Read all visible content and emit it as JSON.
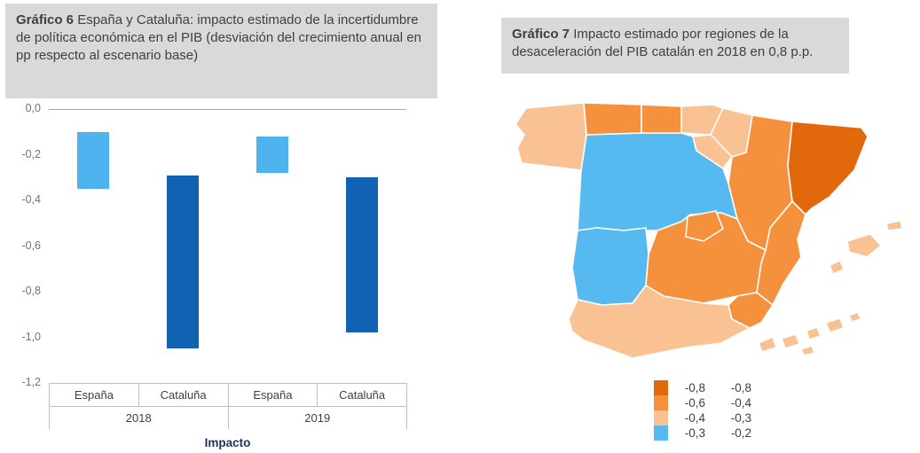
{
  "left_panel": {
    "label": "Gráfico 6",
    "title": " España y Cataluña: impacto estimado de la incertidumbre de política económica en el PIB (desviación del crecimiento anual en pp respecto al escenario base)"
  },
  "right_panel": {
    "label": "Gráfico 7",
    "title": " Impacto estimado por regiones de la desaceleración del PIB catalán en 2018 en 0,8 p.p."
  },
  "chart_data": [
    {
      "type": "bar",
      "subtype": "floating-range-bars",
      "title": "España y Cataluña: impacto estimado de la incertidumbre de política económica en el PIB",
      "units": "desviación del crecimiento anual en pp respecto al escenario base",
      "xlabel": "Impacto",
      "ylim": [
        -1.2,
        0.0
      ],
      "yticks": [
        "0,0",
        "-0,2",
        "-0,4",
        "-0,6",
        "-0,8",
        "-1,0",
        "-1,2"
      ],
      "grid": false,
      "legend_position": "none",
      "groups": [
        {
          "label": "2018",
          "bars": [
            {
              "category": "España",
              "from": -0.1,
              "to": -0.35,
              "color": "#4FB3F0"
            },
            {
              "category": "Cataluña",
              "from": -0.29,
              "to": -1.05,
              "color": "#1262B3"
            }
          ]
        },
        {
          "label": "2019",
          "bars": [
            {
              "category": "España",
              "from": -0.12,
              "to": -0.28,
              "color": "#4FB3F0"
            },
            {
              "category": "Cataluña",
              "from": -0.3,
              "to": -0.98,
              "color": "#1262B3"
            }
          ]
        }
      ]
    },
    {
      "type": "heatmap",
      "subtype": "choropleth-map-spain",
      "title": "Impacto estimado por regiones de la desaceleración del PIB catalán en 2018 en 0,8 p.p.",
      "legend_position": "bottom",
      "legend": [
        {
          "color": "#E2690B",
          "from": "-0,8",
          "to": "-0,8"
        },
        {
          "color": "#F5913D",
          "from": "-0,6",
          "to": "-0,4"
        },
        {
          "color": "#FAC192",
          "from": "-0,4",
          "to": "-0,3"
        },
        {
          "color": "#56B9EF",
          "from": "-0,3",
          "to": "-0,2"
        }
      ],
      "regions": {
        "cataluna": 0,
        "aragon": 1,
        "asturias": 1,
        "cantabria": 1,
        "madrid": 1,
        "castilla-la-mancha": 1,
        "valencia": 1,
        "murcia": 1,
        "galicia": 2,
        "pais-vasco": 2,
        "navarra": 2,
        "la-rioja": 2,
        "andalucia": 2,
        "baleares": 2,
        "canarias": 2,
        "castilla-y-leon": 3,
        "extremadura": 3
      }
    }
  ]
}
